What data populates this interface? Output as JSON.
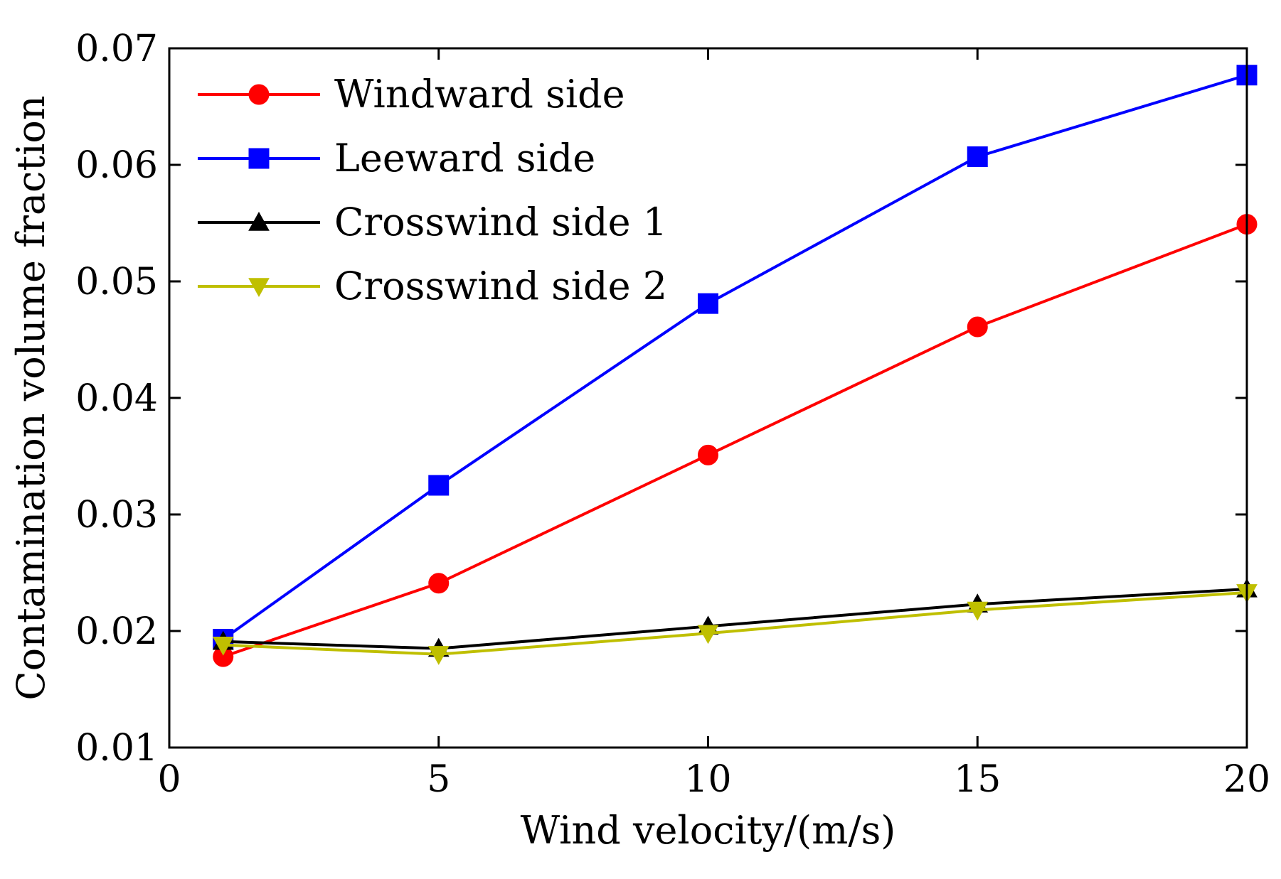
{
  "chart_data": {
    "type": "line",
    "title": "",
    "xlabel": "Wind velocity/(m/s)",
    "ylabel": "Contamination volume fraction",
    "xlim": [
      0,
      20
    ],
    "ylim": [
      0.01,
      0.07
    ],
    "xticks": [
      0,
      5,
      10,
      15,
      20
    ],
    "xtick_labels": [
      "0",
      "5",
      "10",
      "15",
      "20"
    ],
    "yticks": [
      0.01,
      0.02,
      0.03,
      0.04,
      0.05,
      0.06,
      0.07
    ],
    "ytick_labels": [
      "0.01",
      "0.02",
      "0.03",
      "0.04",
      "0.05",
      "0.06",
      "0.07"
    ],
    "grid": false,
    "legend_position": "top-left",
    "x": [
      1,
      5,
      10,
      15,
      20
    ],
    "series": [
      {
        "name": "Windward side",
        "values": [
          0.0178,
          0.0241,
          0.0351,
          0.0461,
          0.0549
        ],
        "color": "#ff0000",
        "marker": "circle"
      },
      {
        "name": "Leeward side",
        "values": [
          0.0193,
          0.0325,
          0.0481,
          0.0607,
          0.0677
        ],
        "color": "#0000ff",
        "marker": "square"
      },
      {
        "name": "Crosswind side 1",
        "values": [
          0.0191,
          0.0185,
          0.0204,
          0.0223,
          0.0236
        ],
        "color": "#000000",
        "marker": "triangle-up"
      },
      {
        "name": "Crosswind side 2",
        "values": [
          0.0188,
          0.018,
          0.0198,
          0.0218,
          0.0233
        ],
        "color": "#bfbf00",
        "marker": "triangle-down"
      }
    ]
  }
}
